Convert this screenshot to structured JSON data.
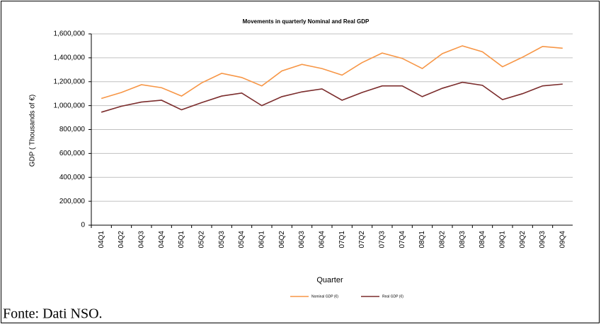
{
  "chart_data": {
    "type": "line",
    "title": "Movements in quarterly Nominal and Real GDP",
    "y_label": "GDP ( Thousands of €)",
    "x_label": "Quarter",
    "caption": "Fonte: Dati NSO.",
    "categories": [
      "04Q1",
      "04Q2",
      "04Q3",
      "04Q4",
      "05Q1",
      "05Q2",
      "05Q3",
      "05Q4",
      "06Q1",
      "06Q2",
      "06Q3",
      "06Q4",
      "07Q1",
      "07Q2",
      "07Q3",
      "07Q4",
      "08Q1",
      "08Q2",
      "08Q3",
      "08Q4",
      "09Q1",
      "09Q2",
      "09Q3",
      "09Q4"
    ],
    "series": [
      {
        "name": "Nominal GDP (€)",
        "color": "#f79646",
        "values": [
          1060000,
          1110000,
          1175000,
          1150000,
          1080000,
          1190000,
          1270000,
          1235000,
          1165000,
          1290000,
          1345000,
          1310000,
          1255000,
          1360000,
          1440000,
          1395000,
          1310000,
          1435000,
          1500000,
          1450000,
          1325000,
          1405000,
          1495000,
          1480000
        ]
      },
      {
        "name": "Real GDP (€)",
        "color": "#7b2c2c",
        "values": [
          945000,
          995000,
          1030000,
          1045000,
          965000,
          1025000,
          1080000,
          1105000,
          1000000,
          1075000,
          1115000,
          1140000,
          1045000,
          1110000,
          1165000,
          1165000,
          1075000,
          1145000,
          1195000,
          1170000,
          1050000,
          1100000,
          1165000,
          1180000
        ]
      }
    ],
    "ylim": [
      0,
      1600000
    ],
    "yticks": [
      0,
      {
        "value": 200000,
        "label": "200,000"
      },
      {
        "value": 400000,
        "label": "400,000"
      },
      {
        "value": 600000,
        "label": "600,000"
      },
      {
        "value": 800000,
        "label": "800,000"
      },
      {
        "value": 1000000,
        "label": "1,000,000"
      },
      {
        "value": 1200000,
        "label": "1,200,000"
      },
      {
        "value": 1400000,
        "label": "1,400,000"
      },
      {
        "value": 1600000,
        "label": "1,600,000"
      }
    ],
    "grid": true,
    "legend": "bottom"
  }
}
